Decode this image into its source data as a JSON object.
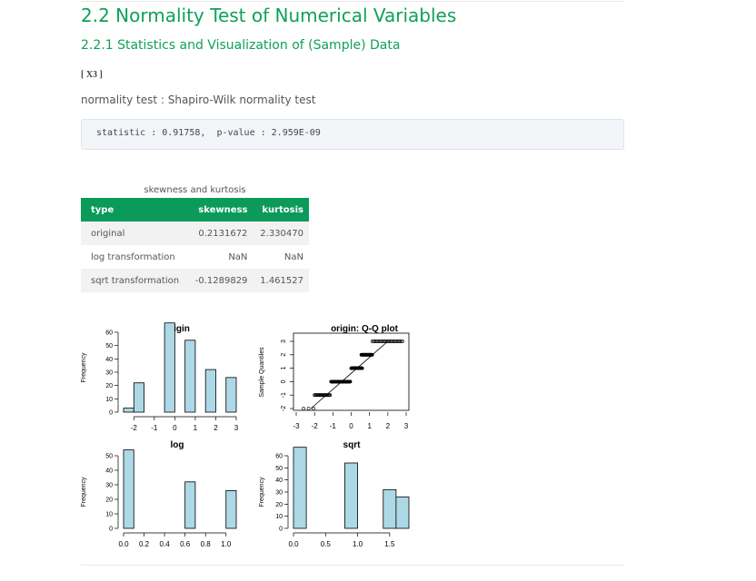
{
  "section_title": "2.2 Normality Test of Numerical Variables",
  "subsection_title": "2.2.1 Statistics and Visualization of (Sample) Data",
  "variable_label": "[ X3 ]",
  "normality_test_line": "normality test : Shapiro-Wilk normality test",
  "statistic_line": "statistic : 0.91758,  p-value : 2.959E-09",
  "table": {
    "caption": "skewness and kurtosis",
    "headers": [
      "type",
      "skewness",
      "kurtosis"
    ],
    "rows": [
      [
        "original",
        "0.2131672",
        "2.330470"
      ],
      [
        "log transformation",
        "NaN",
        "NaN"
      ],
      [
        "sqrt transformation",
        "-0.1289829",
        "1.461527"
      ]
    ]
  },
  "colors": {
    "accent": "#10a05a",
    "header_bg": "#0b9a5a",
    "bar_fill": "#add8e6"
  },
  "chart_data": [
    {
      "type": "bar",
      "title": "origin",
      "ylabel": "Frequency",
      "xlim": [
        -2.5,
        3
      ],
      "ylim": [
        0,
        60
      ],
      "xticks": [
        "-2",
        "-1",
        "0",
        "1",
        "2",
        "3"
      ],
      "yticks": [
        "0",
        "10",
        "20",
        "30",
        "40",
        "50",
        "60"
      ],
      "bins": [
        [
          -2.5,
          -2
        ],
        [
          -2,
          -1.5
        ],
        [
          -1.5,
          -1
        ],
        [
          -1,
          -0.5
        ],
        [
          -0.5,
          0
        ],
        [
          0,
          0.5
        ],
        [
          0.5,
          1
        ],
        [
          1,
          1.5
        ],
        [
          1.5,
          2
        ],
        [
          2,
          2.5
        ],
        [
          2.5,
          3
        ]
      ],
      "values": [
        3,
        22,
        0,
        0,
        67,
        0,
        54,
        0,
        32,
        0,
        26
      ]
    },
    {
      "type": "scatter",
      "title": "origin: Q-Q plot",
      "xlabel": "",
      "ylabel": "Sample Quantiles",
      "xlim": [
        -3,
        3
      ],
      "ylim": [
        -2,
        3
      ],
      "xticks": [
        "-3",
        "-2",
        "-1",
        "0",
        "1",
        "2",
        "3"
      ],
      "yticks": [
        "-2",
        "-1",
        "0",
        "1",
        "2",
        "3"
      ],
      "groups": [
        {
          "y": -2,
          "x_from": -2.6,
          "x_to": -2.05,
          "n": 3
        },
        {
          "y": -1,
          "x_from": -2.0,
          "x_to": -1.15,
          "n": 22
        },
        {
          "y": 0,
          "x_from": -1.1,
          "x_to": -0.05,
          "n": 67
        },
        {
          "y": 1,
          "x_from": 0.0,
          "x_to": 0.6,
          "n": 54
        },
        {
          "y": 2,
          "x_from": 0.55,
          "x_to": 1.15,
          "n": 32
        },
        {
          "y": 3,
          "x_from": 1.15,
          "x_to": 2.8,
          "n": 26
        }
      ],
      "reference_line": [
        [
          -2.2,
          -2
        ],
        [
          2.0,
          3
        ]
      ]
    },
    {
      "type": "bar",
      "title": "log",
      "ylabel": "Frequency",
      "xlim": [
        0,
        1.1
      ],
      "ylim": [
        0,
        50
      ],
      "xticks": [
        "0.0",
        "0.2",
        "0.4",
        "0.6",
        "0.8",
        "1.0"
      ],
      "yticks": [
        "0",
        "10",
        "20",
        "30",
        "40",
        "50"
      ],
      "bins": [
        [
          0,
          0.1
        ],
        [
          0.1,
          0.2
        ],
        [
          0.2,
          0.3
        ],
        [
          0.3,
          0.4
        ],
        [
          0.4,
          0.5
        ],
        [
          0.5,
          0.6
        ],
        [
          0.6,
          0.7
        ],
        [
          0.7,
          0.8
        ],
        [
          0.8,
          0.9
        ],
        [
          0.9,
          1.0
        ],
        [
          1.0,
          1.1
        ]
      ],
      "values": [
        54,
        0,
        0,
        0,
        0,
        0,
        32,
        0,
        0,
        0,
        26
      ]
    },
    {
      "type": "bar",
      "title": "sqrt",
      "ylabel": "Frequency",
      "xlim": [
        0,
        1.8
      ],
      "ylim": [
        0,
        60
      ],
      "xticks": [
        "0.0",
        "0.5",
        "1.0",
        "1.5"
      ],
      "yticks": [
        "0",
        "10",
        "20",
        "30",
        "40",
        "50",
        "60"
      ],
      "bins": [
        [
          0,
          0.2
        ],
        [
          0.2,
          0.4
        ],
        [
          0.4,
          0.6
        ],
        [
          0.6,
          0.8
        ],
        [
          0.8,
          1.0
        ],
        [
          1.0,
          1.2
        ],
        [
          1.2,
          1.4
        ],
        [
          1.4,
          1.6
        ],
        [
          1.6,
          1.8
        ]
      ],
      "values": [
        67,
        0,
        0,
        0,
        54,
        0,
        0,
        32,
        26
      ]
    }
  ]
}
